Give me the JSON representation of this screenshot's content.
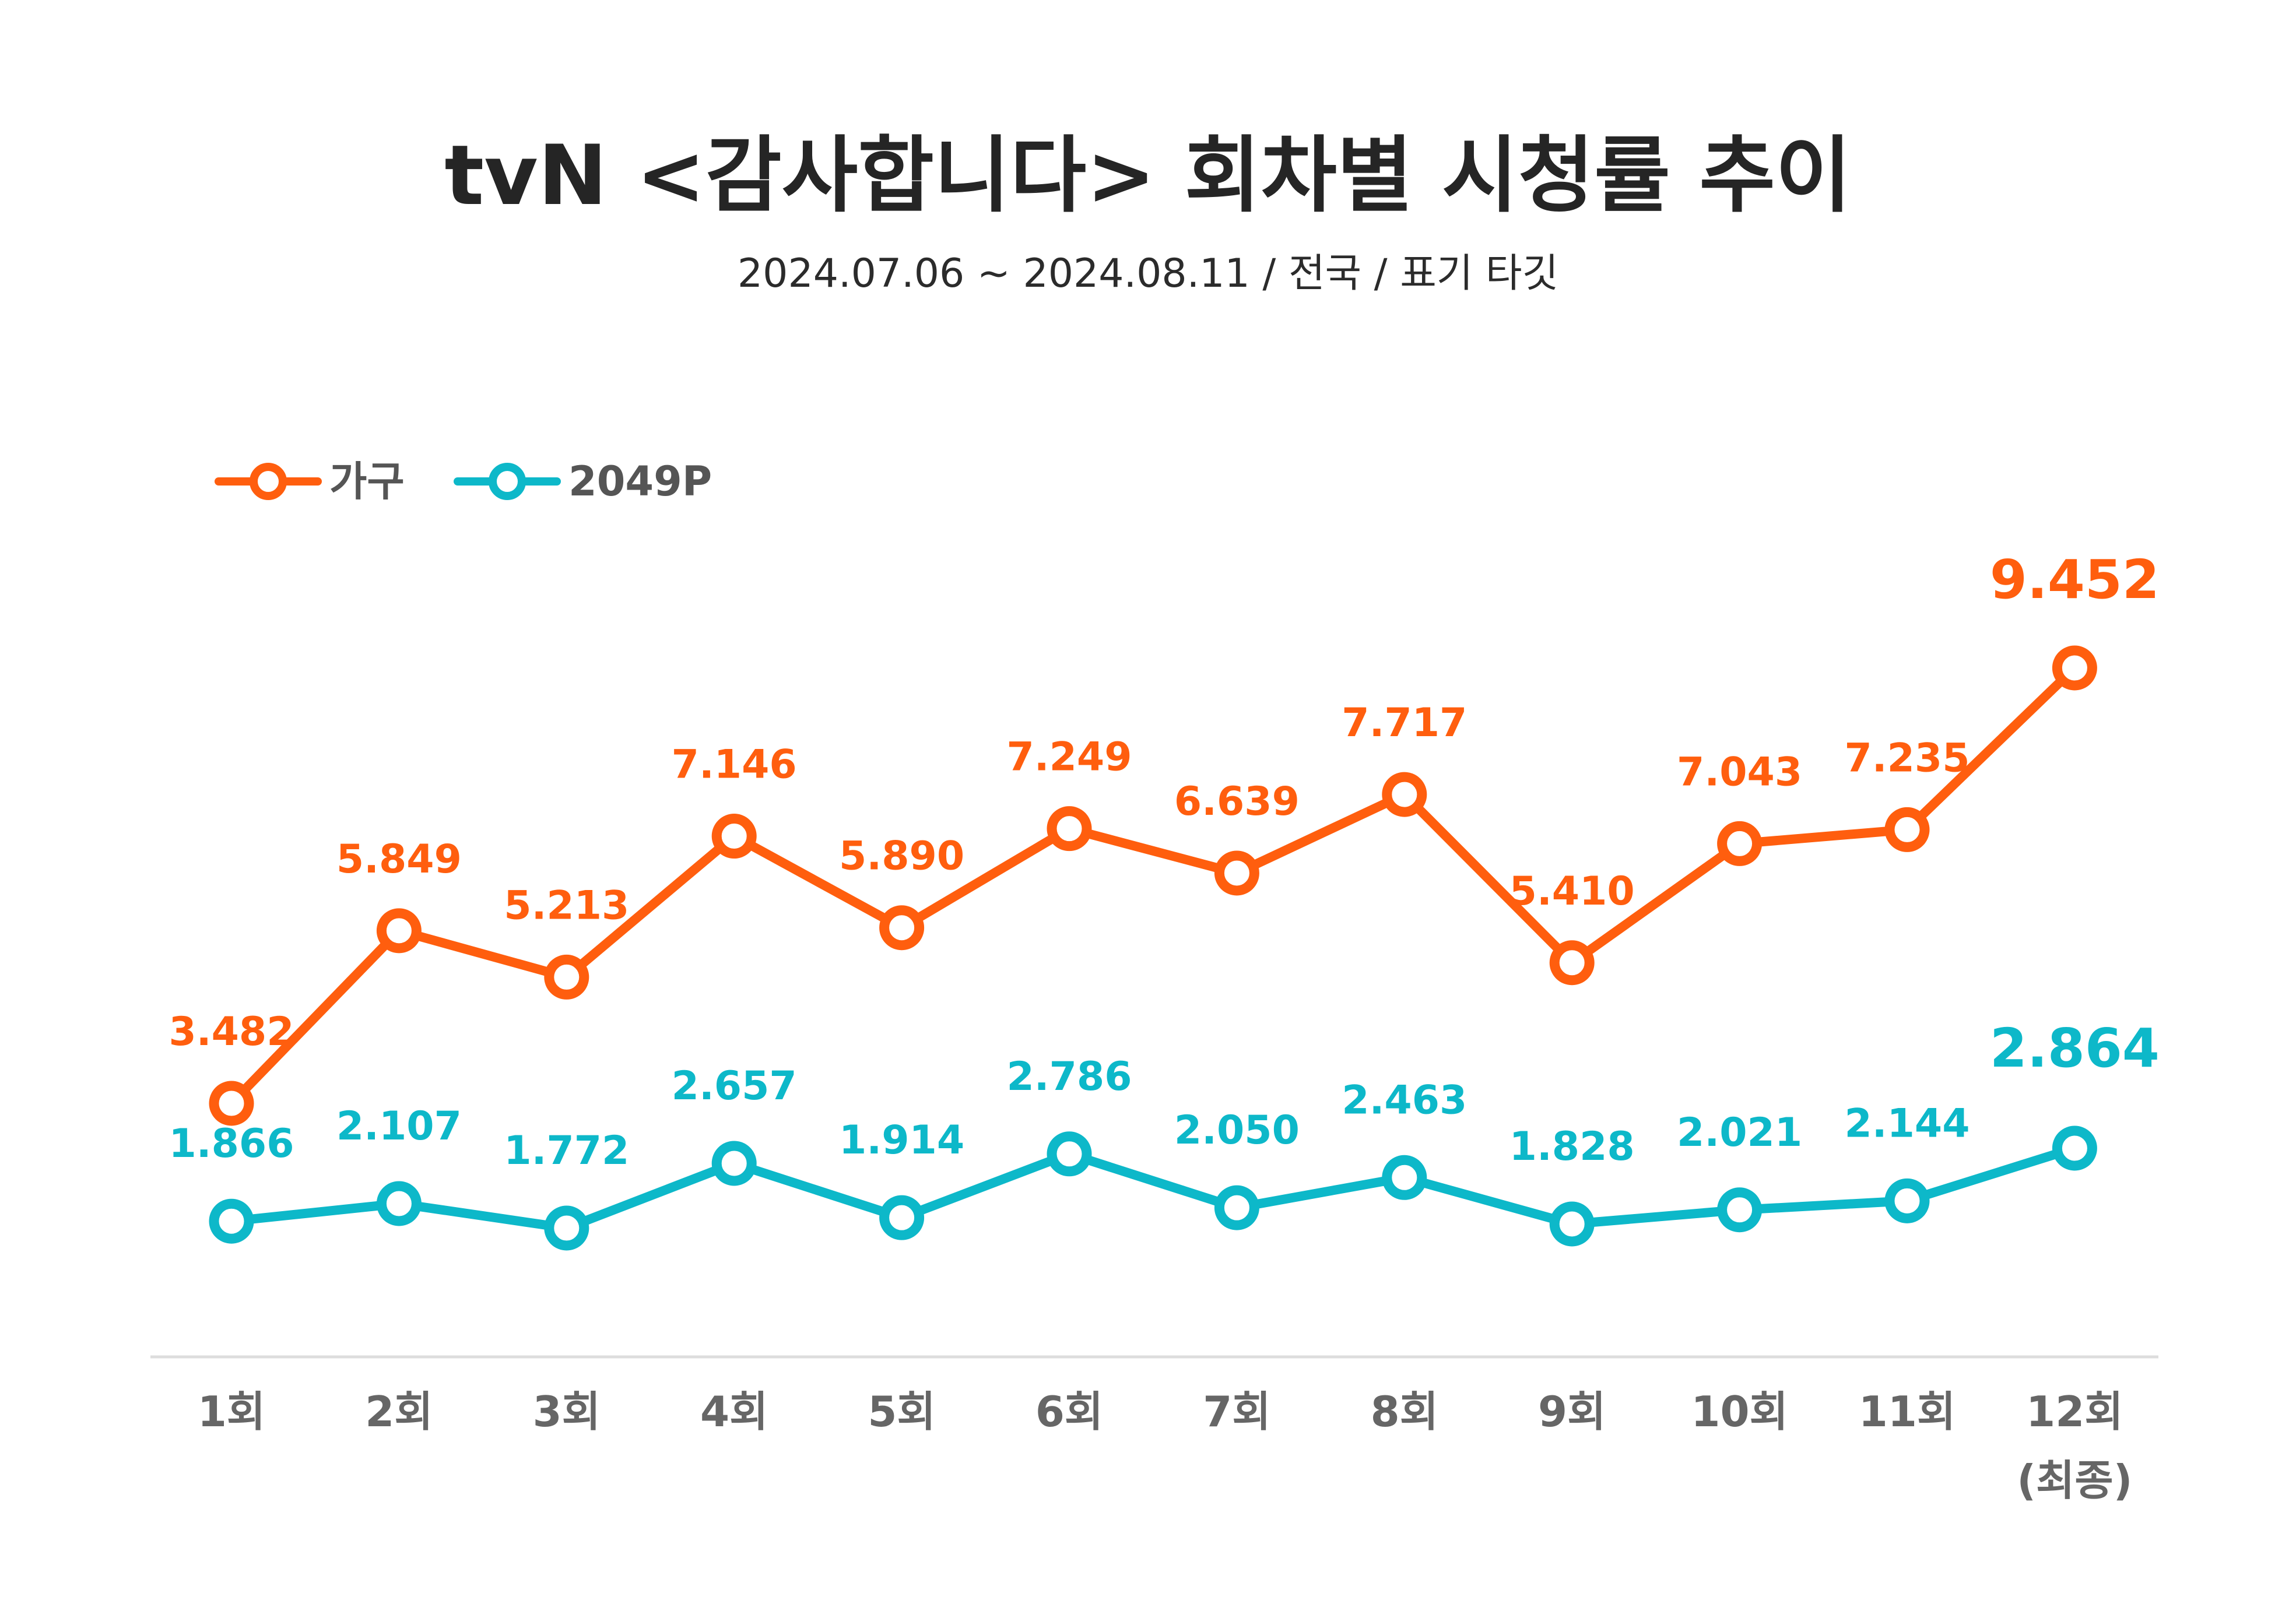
{
  "chart_data": {
    "type": "line",
    "title": "tvN <감사합니다> 회차별 시청률 추이",
    "subtitle": "2024.07.06 ~ 2024.08.11 / 전국 / 표기 타깃",
    "categories": [
      "1회",
      "2회",
      "3회",
      "4회",
      "5회",
      "6회",
      "7회",
      "8회",
      "9회",
      "10회",
      "11회",
      "12회"
    ],
    "category_notes": [
      "",
      "",
      "",
      "",
      "",
      "",
      "",
      "",
      "",
      "",
      "",
      "(최종)"
    ],
    "series": [
      {
        "name": "가구",
        "color": "#FF5E0E",
        "values": [
          3.482,
          5.849,
          5.213,
          7.146,
          5.89,
          7.249,
          6.639,
          7.717,
          5.41,
          7.043,
          7.235,
          9.452
        ],
        "labels": [
          "3.482",
          "5.849",
          "5.213",
          "7.146",
          "5.890",
          "7.249",
          "6.639",
          "7.717",
          "5.410",
          "7.043",
          "7.235",
          "9.452"
        ]
      },
      {
        "name": "2049P",
        "color": "#0DB8C9",
        "values": [
          1.866,
          2.107,
          1.772,
          2.657,
          1.914,
          2.786,
          2.05,
          2.463,
          1.828,
          2.021,
          2.144,
          2.864
        ],
        "labels": [
          "1.866",
          "2.107",
          "1.772",
          "2.657",
          "1.914",
          "2.786",
          "2.050",
          "2.463",
          "1.828",
          "2.021",
          "2.144",
          "2.864"
        ]
      }
    ],
    "legend_position": "top-left",
    "grid": false,
    "baseline_color": "#DDDDDD"
  }
}
